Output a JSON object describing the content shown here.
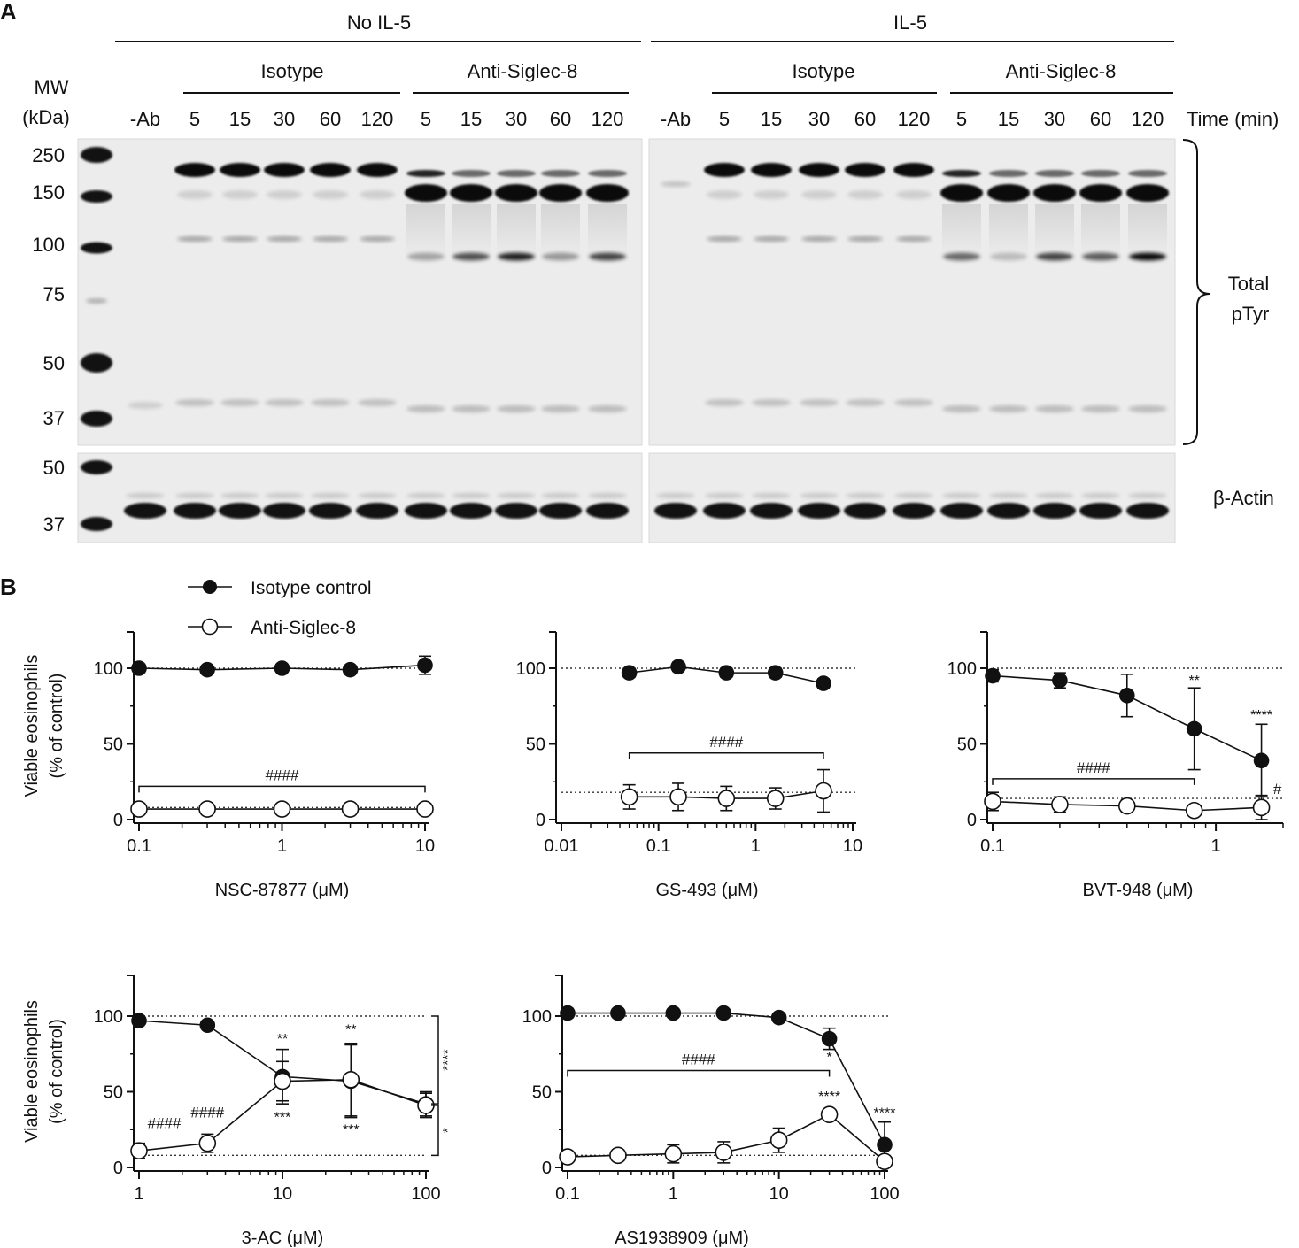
{
  "panel_a": {
    "letter": "A",
    "conditions": [
      "No IL-5",
      "IL-5"
    ],
    "treatments": [
      "Isotype",
      "Anti-Siglec-8",
      "Isotype",
      "Anti-Siglec-8"
    ],
    "mw_header": [
      "MW",
      "(kDa)"
    ],
    "lane_labels": [
      "-Ab",
      "5",
      "15",
      "30",
      "60",
      "120",
      "5",
      "15",
      "30",
      "60",
      "120"
    ],
    "time_label": "Time (min)",
    "mw_top": [
      "250",
      "150",
      "100",
      "75",
      "50",
      "37"
    ],
    "mw_bottom": [
      "50",
      "37"
    ],
    "total_label": [
      "Total",
      "pTyr"
    ],
    "actin_label": "β-Actin"
  },
  "panel_b": {
    "letter": "B",
    "legend": {
      "isotype": "Isotype control",
      "anti": "Anti-Siglec-8"
    },
    "ylabel": [
      "Viable eosinophils",
      "(% of control)"
    ]
  },
  "chart_data": [
    {
      "type": "line",
      "xlabel": "NSC-87877 (μM)",
      "xscale": "log",
      "xlim": [
        0.1,
        10
      ],
      "ylim": [
        0,
        120
      ],
      "xticks": [
        "0.1",
        "1",
        "10"
      ],
      "yticks": [
        "0",
        "50",
        "100"
      ],
      "series": [
        {
          "name": "Isotype control",
          "x": [
            0.1,
            0.3,
            1,
            3,
            10
          ],
          "y": [
            100,
            99,
            100,
            99,
            102
          ],
          "err": [
            2,
            2,
            2,
            2,
            6
          ]
        },
        {
          "name": "Anti-Siglec-8",
          "x": [
            0.1,
            0.3,
            1,
            3,
            10
          ],
          "y": [
            7,
            7,
            7,
            7,
            7
          ],
          "err": [
            2,
            2,
            2,
            2,
            2
          ]
        }
      ],
      "ref_lines": [
        100,
        8
      ],
      "bracket": {
        "label": "####",
        "x1": 0.1,
        "x2": 10,
        "y": 22
      }
    },
    {
      "type": "line",
      "xlabel": "GS-493 (μM)",
      "xscale": "log",
      "xlim": [
        0.01,
        10
      ],
      "ylim": [
        0,
        120
      ],
      "xticks": [
        "0.01",
        "0.1",
        "1",
        "10"
      ],
      "yticks": [
        "0",
        "50",
        "100"
      ],
      "series": [
        {
          "name": "Isotype control",
          "x": [
            0.05,
            0.16,
            0.5,
            1.6,
            5
          ],
          "y": [
            97,
            101,
            97,
            97,
            90
          ],
          "err": [
            3,
            3,
            3,
            3,
            3
          ]
        },
        {
          "name": "Anti-Siglec-8",
          "x": [
            0.05,
            0.16,
            0.5,
            1.6,
            5
          ],
          "y": [
            15,
            15,
            14,
            14,
            19
          ],
          "err": [
            8,
            9,
            8,
            7,
            14
          ]
        }
      ],
      "ref_lines": [
        100,
        18
      ],
      "bracket": {
        "label": "####",
        "x1": 0.05,
        "x2": 5,
        "y": 44
      }
    },
    {
      "type": "line",
      "xlabel": "BVT-948 (μM)",
      "xscale": "log",
      "xlim": [
        0.1,
        2
      ],
      "ylim": [
        0,
        120
      ],
      "xticks": [
        "0.1",
        "1"
      ],
      "yticks": [
        "0",
        "50",
        "100"
      ],
      "series": [
        {
          "name": "Isotype control",
          "x": [
            0.1,
            0.2,
            0.4,
            0.8,
            1.6
          ],
          "y": [
            95,
            92,
            82,
            60,
            39
          ],
          "err": [
            4,
            5,
            14,
            27,
            24
          ]
        },
        {
          "name": "Anti-Siglec-8",
          "x": [
            0.1,
            0.2,
            0.4,
            0.8,
            1.6
          ],
          "y": [
            12,
            10,
            9,
            6,
            8
          ],
          "err": [
            6,
            5,
            4,
            3,
            8
          ]
        }
      ],
      "ref_lines": [
        100,
        14
      ],
      "bracket": {
        "label": "####",
        "x1": 0.1,
        "x2": 0.8,
        "y": 27
      },
      "annotations": [
        {
          "text": "**",
          "x": 0.8,
          "y": 89
        },
        {
          "text": "****",
          "x": 1.6,
          "y": 66
        },
        {
          "text": "#",
          "x": 1.6,
          "y": 17,
          "dx": 18
        }
      ]
    },
    {
      "type": "line",
      "xlabel": "3-AC (μM)",
      "xscale": "log",
      "xlim": [
        1,
        100
      ],
      "ylim": [
        0,
        120
      ],
      "xticks": [
        "1",
        "10",
        "100"
      ],
      "yticks": [
        "0",
        "50",
        "100"
      ],
      "series": [
        {
          "name": "Isotype control",
          "x": [
            1,
            3,
            10,
            30,
            100
          ],
          "y": [
            97,
            94,
            60,
            57,
            42
          ],
          "err": [
            2,
            2,
            18,
            24,
            8
          ]
        },
        {
          "name": "Anti-Siglec-8",
          "x": [
            1,
            3,
            10,
            30,
            100
          ],
          "y": [
            11,
            16,
            57,
            58,
            41
          ],
          "err": [
            5,
            6,
            13,
            24,
            8
          ]
        }
      ],
      "ref_lines": [
        100,
        8
      ],
      "annotations": [
        {
          "text": "####",
          "x": 1.5,
          "y": 26
        },
        {
          "text": "####",
          "x": 3,
          "y": 33
        },
        {
          "text": "**",
          "x": 10,
          "y": 82
        },
        {
          "text": "**",
          "x": 30,
          "y": 88
        },
        {
          "text": "***",
          "x": 10,
          "y": 30
        },
        {
          "text": "***",
          "x": 30,
          "y": 22
        }
      ],
      "side_brackets": [
        {
          "label": "****",
          "y1": 100,
          "y2": 42
        },
        {
          "label": "*",
          "y1": 41,
          "y2": 8
        }
      ]
    },
    {
      "type": "line",
      "xlabel": "AS1938909 (μM)",
      "xscale": "log",
      "xlim": [
        0.1,
        100
      ],
      "ylim": [
        0,
        120
      ],
      "xticks": [
        "0.1",
        "1",
        "10",
        "100"
      ],
      "yticks": [
        "0",
        "50",
        "100"
      ],
      "series": [
        {
          "name": "Isotype control",
          "x": [
            0.1,
            0.3,
            1,
            3,
            10,
            30,
            100
          ],
          "y": [
            102,
            102,
            102,
            102,
            99,
            85,
            15
          ],
          "err": [
            3,
            2,
            2,
            2,
            2,
            7,
            15
          ]
        },
        {
          "name": "Anti-Siglec-8",
          "x": [
            0.1,
            0.3,
            1,
            3,
            10,
            30,
            100
          ],
          "y": [
            7,
            8,
            9,
            10,
            18,
            35,
            4
          ],
          "err": [
            2,
            2,
            6,
            7,
            8,
            3,
            2
          ]
        }
      ],
      "ref_lines": [
        100,
        8
      ],
      "bracket": {
        "label": "####",
        "x1": 0.1,
        "x2": 30,
        "y": 64
      },
      "annotations": [
        {
          "text": "*",
          "x": 30,
          "y": 70
        },
        {
          "text": "****",
          "x": 30,
          "y": 44
        },
        {
          "text": "****",
          "x": 100,
          "y": 33
        }
      ]
    }
  ]
}
